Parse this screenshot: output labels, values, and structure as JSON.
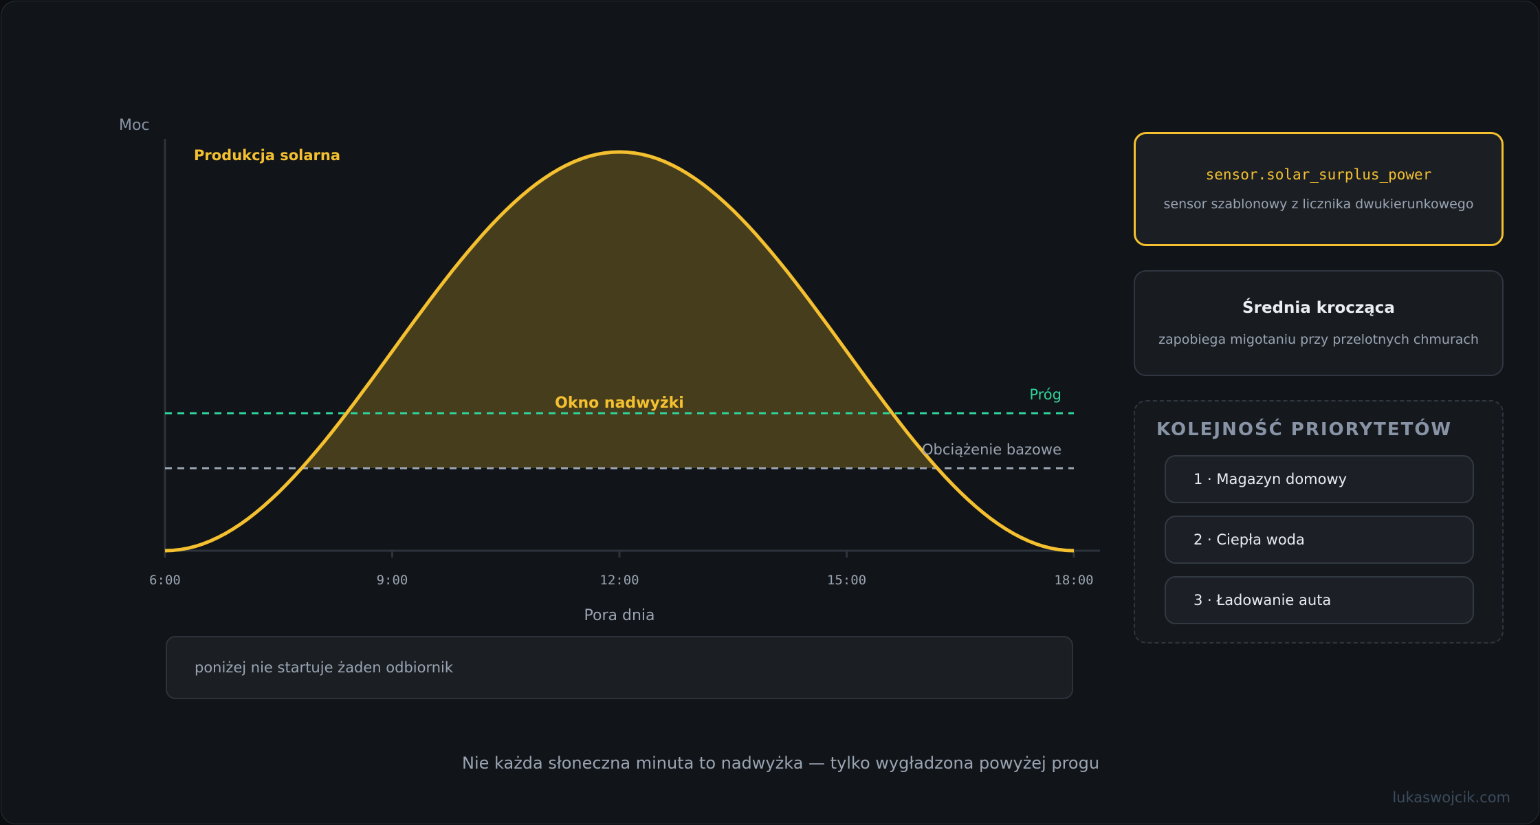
{
  "chart_data": {
    "type": "area",
    "y_axis_label": "Moc",
    "x_axis_label": "Pora dnia",
    "x_ticks": [
      "6:00",
      "9:00",
      "12:00",
      "15:00",
      "18:00"
    ],
    "x_range_hours": [
      6,
      18
    ],
    "series": [
      {
        "name": "Produkcja solarna",
        "shape": "bell curve peaking at 12:00",
        "color": "#f4c030"
      }
    ],
    "reference_lines": [
      {
        "name": "Próg",
        "relative_level": 0.34,
        "color": "#2fd39a",
        "style": "dashed"
      },
      {
        "name": "Obciążenie bazowe",
        "relative_level": 0.2,
        "color": "#9aa4b2",
        "style": "dashed"
      }
    ],
    "annotations": {
      "window_label": "Okno nadwyżki"
    }
  },
  "note_box": {
    "text": "poniżej nie startuje żaden odbiornik"
  },
  "sensor_card": {
    "title": "sensor.solar_surplus_power",
    "subtitle": "sensor szablonowy z licznika dwukierunkowego"
  },
  "avg_card": {
    "title": "Średnia krocząca",
    "subtitle": "zapobiega migotaniu przy przelotnych chmurach"
  },
  "priorities": {
    "title": "KOLEJNOŚĆ PRIORYTETÓW",
    "items": [
      "1 · Magazyn domowy",
      "2 · Ciepła woda",
      "3 · Ładowanie auta"
    ]
  },
  "footer": {
    "tagline": "Nie każda słoneczna minuta to nadwyżka — tylko wygładzona powyżej progu",
    "credit": "lukaswojcik.com"
  },
  "colors": {
    "accent": "#f4c030",
    "threshold": "#2fd39a",
    "baseline": "#9aa4b2",
    "background": "#111418"
  }
}
